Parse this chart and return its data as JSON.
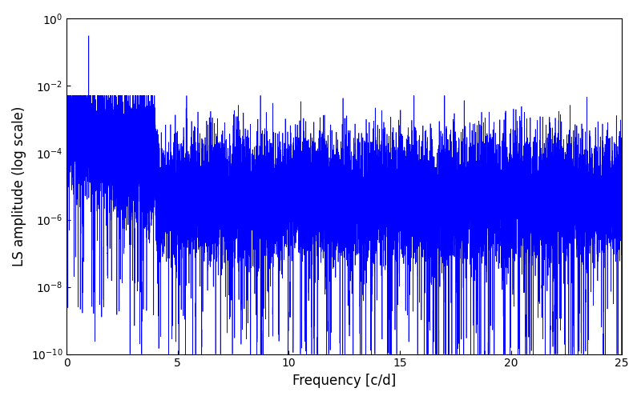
{
  "xlabel": "Frequency [c/d]",
  "ylabel": "LS amplitude (log scale)",
  "xlim": [
    0,
    25
  ],
  "ylim": [
    1e-10,
    1.0
  ],
  "line_color": "#0000ff",
  "line_width": 0.5,
  "figsize": [
    8.0,
    5.0
  ],
  "dpi": 100,
  "background_color": "#ffffff",
  "num_points": 15000,
  "peak_freq": 1.0,
  "peak_amp": 0.3,
  "seed": 7
}
